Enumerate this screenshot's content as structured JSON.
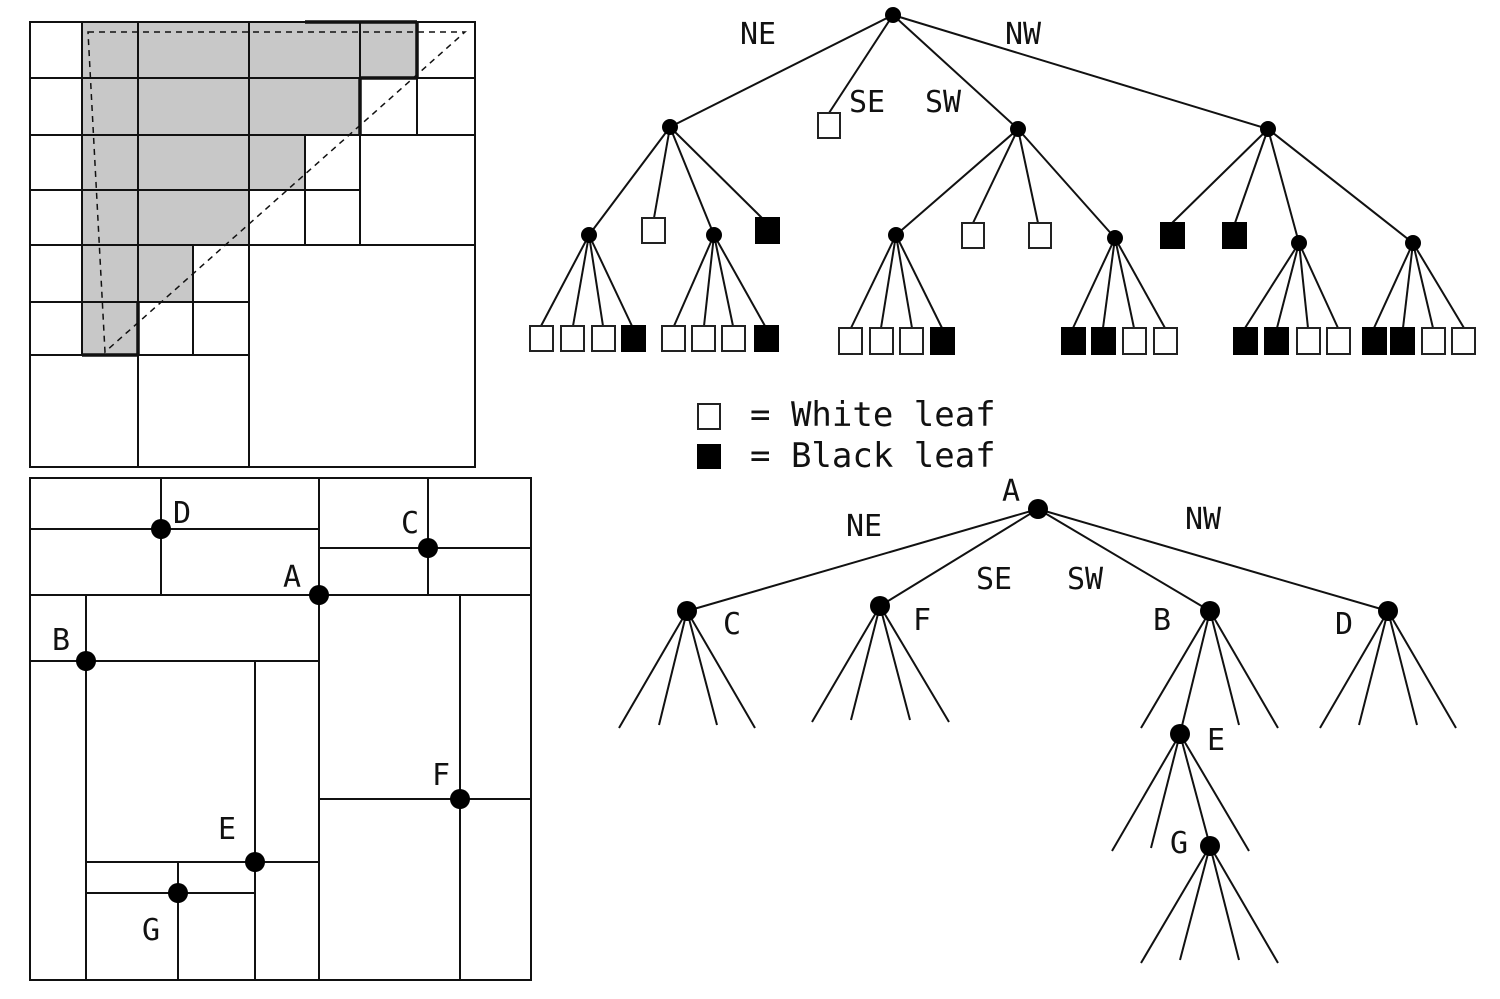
{
  "region_quadtree": {
    "edge_labels": {
      "ne": "NE",
      "se": "SE",
      "sw": "SW",
      "nw": "NW"
    }
  },
  "legend": {
    "white": "= White leaf",
    "black": "= Black leaf"
  },
  "point_quadtree": {
    "points": {
      "a": "A",
      "b": "B",
      "c": "C",
      "d": "D",
      "e": "E",
      "f": "F",
      "g": "G"
    },
    "tree_labels": {
      "a": "A",
      "b": "B",
      "c": "C",
      "d": "D",
      "e": "E",
      "f": "F",
      "g": "G"
    },
    "edge_labels": {
      "ne": "NE",
      "se": "SE",
      "sw": "SW",
      "nw": "NW"
    }
  }
}
